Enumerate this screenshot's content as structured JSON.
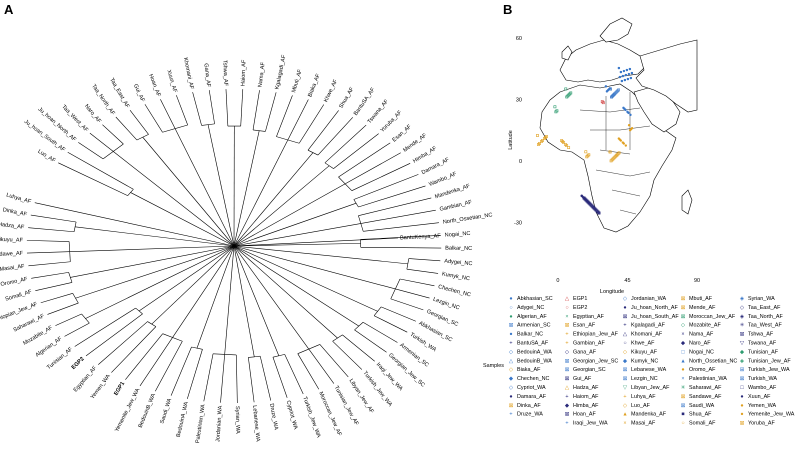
{
  "panel_a": {
    "letter": "A",
    "root_label": "BantuKenya_AF",
    "leaves": [
      "Luo_AF",
      "Ju_hoan_South_AF",
      "Ju_hoan_North_AF",
      "Taa_West_AF",
      "Naro_AF",
      "Taa_North_AF",
      "Taa_East_AF",
      "Gui_AF",
      "Hoan_AF",
      "Xuun_AF",
      "Khomani_AF",
      "Gana_AF",
      "Tshwa_AF",
      "Haiom_AF",
      "Nama_AF",
      "Kgalagadi_AF",
      "Mbuti_AF",
      "Biaka_AF",
      "Khwe_AF",
      "Shua_AF",
      "BantuSA_AF",
      "Tswana_AF",
      "Yoruba_AF",
      "Esan_AF",
      "Mende_AF",
      "Himba_AF",
      "Damara_AF",
      "Wambo_AF",
      "Mandenka_AF",
      "Gambian_AF",
      "North_Ossetian_NC",
      "Nogai_NC",
      "Balkar_NC",
      "Adygei_NC",
      "Kumyk_NC",
      "Chechen_NC",
      "Lezgin_NC",
      "Georgian_SC",
      "Abkhasian_SC",
      "Turkish_WA",
      "Armenian_SC",
      "Georgian_Jew_SC",
      "Iraqi_Jew_WA",
      "Turkish_Jew_WA",
      "Libyan_Jew_AF",
      "Tunisian_Jew_AF",
      "Moroccan_Jew_AF",
      "Turkish_Jew_WA",
      "Cypriot_WA",
      "Druze_WA",
      "Lebanese_WA",
      "Syrian_WA",
      "Jordanian_WA",
      "Palestinian_WA",
      "BedouinA_WA",
      "Saudi_WA",
      "BedouinB_WA",
      "Yemenite_Jew_WA",
      "EGP1",
      "Yemen_WA",
      "Egyptian_AF",
      "EGP2",
      "Tunisian_AF",
      "Algerian_AF",
      "Mozabite_AF",
      "Saharawi_AF",
      "Ethiopian_Jew_AF",
      "Somali_AF",
      "Oromo_AF",
      "Masai_AF",
      "Sandawe_AF",
      "Kikuyu_AF",
      "Hadza_AF",
      "Dinka_AF",
      "Luhya_AF"
    ],
    "bold_leaves": [
      "EGP1",
      "EGP2"
    ]
  },
  "panel_b": {
    "letter": "B",
    "map": {
      "xlabel": "Longitude",
      "ylabel": "Latitude",
      "x_ticks": [
        "0",
        "45",
        "90"
      ],
      "y_ticks": [
        "60",
        "30",
        "0",
        "-30"
      ]
    },
    "legend": {
      "title": "Samples",
      "columns": [
        [
          {
            "label": "Abkhasian_SC",
            "color": "#3a78c9",
            "sym": "●"
          },
          {
            "label": "Adygei_NC",
            "color": "#3a78c9",
            "sym": "○"
          },
          {
            "label": "Algerian_AF",
            "color": "#2e9c70",
            "sym": "●"
          },
          {
            "label": "Armenian_SC",
            "color": "#3a78c9",
            "sym": "⊠"
          },
          {
            "label": "Balkar_NC",
            "color": "#3a78c9",
            "sym": "●"
          },
          {
            "label": "BantuSA_AF",
            "color": "#2a2a7a",
            "sym": "+"
          },
          {
            "label": "BedouinA_WA",
            "color": "#3a78c9",
            "sym": "◇"
          },
          {
            "label": "BedouinB_WA",
            "color": "#3a78c9",
            "sym": "△"
          },
          {
            "label": "Biaka_AF",
            "color": "#e0a020",
            "sym": "◇"
          },
          {
            "label": "Chechen_NC",
            "color": "#3a78c9",
            "sym": "◆"
          },
          {
            "label": "Cypriot_WA",
            "color": "#3a78c9",
            "sym": "◇"
          },
          {
            "label": "Damara_AF",
            "color": "#2a2a7a",
            "sym": "●"
          },
          {
            "label": "Dinka_AF",
            "color": "#e0a020",
            "sym": "⊠"
          },
          {
            "label": "Druze_WA",
            "color": "#3a78c9",
            "sym": "+"
          }
        ],
        [
          {
            "label": "EGP1",
            "color": "#d04040",
            "sym": "△"
          },
          {
            "label": "EGP2",
            "color": "#d04040",
            "sym": "○"
          },
          {
            "label": "Egyptian_AF",
            "color": "#2e9c70",
            "sym": "×"
          },
          {
            "label": "Esan_AF",
            "color": "#e0a020",
            "sym": "⊠"
          },
          {
            "label": "Ethiopian_Jew_AF",
            "color": "#e0a020",
            "sym": "+"
          },
          {
            "label": "Gambian_AF",
            "color": "#e0a020",
            "sym": "+"
          },
          {
            "label": "Gana_AF",
            "color": "#2a2a7a",
            "sym": "◇"
          },
          {
            "label": "Georgian_Jew_SC",
            "color": "#3a78c9",
            "sym": "⊠"
          },
          {
            "label": "Georgian_SC",
            "color": "#3a78c9",
            "sym": "⊠"
          },
          {
            "label": "Gui_AF",
            "color": "#2a2a7a",
            "sym": "⊠"
          },
          {
            "label": "Hadza_AF",
            "color": "#e0a020",
            "sym": "△"
          },
          {
            "label": "Haiom_AF",
            "color": "#2a2a7a",
            "sym": "+"
          },
          {
            "label": "Himba_AF",
            "color": "#2a2a7a",
            "sym": "◆"
          },
          {
            "label": "Hoan_AF",
            "color": "#2a2a7a",
            "sym": "⊠"
          },
          {
            "label": "Iraqi_Jew_WA",
            "color": "#3a78c9",
            "sym": "+"
          }
        ],
        [
          {
            "label": "Jordanian_WA",
            "color": "#3a78c9",
            "sym": "◇"
          },
          {
            "label": "Ju_hoan_North_AF",
            "color": "#2a2a7a",
            "sym": "●"
          },
          {
            "label": "Ju_hoan_South_AF",
            "color": "#2a2a7a",
            "sym": "⊠"
          },
          {
            "label": "Kgalagadi_AF",
            "color": "#2a2a7a",
            "sym": "+"
          },
          {
            "label": "Khomani_AF",
            "color": "#2a2a7a",
            "sym": "△"
          },
          {
            "label": "Khwe_AF",
            "color": "#2a2a7a",
            "sym": "○"
          },
          {
            "label": "Kikuyu_AF",
            "color": "#e0a020",
            "sym": "◇"
          },
          {
            "label": "Kumyk_NC",
            "color": "#3a78c9",
            "sym": "◆"
          },
          {
            "label": "Lebanese_WA",
            "color": "#3a78c9",
            "sym": "⊠"
          },
          {
            "label": "Lezgin_NC",
            "color": "#3a78c9",
            "sym": "⊠"
          },
          {
            "label": "Libyan_Jew_AF",
            "color": "#2e9c70",
            "sym": "▽"
          },
          {
            "label": "Luhya_AF",
            "color": "#e0a020",
            "sym": "+"
          },
          {
            "label": "Luo_AF",
            "color": "#e0a020",
            "sym": "◇"
          },
          {
            "label": "Mandenka_AF",
            "color": "#e0a020",
            "sym": "▲"
          },
          {
            "label": "Masai_AF",
            "color": "#e0a020",
            "sym": "×"
          }
        ],
        [
          {
            "label": "Mbuti_AF",
            "color": "#e0a020",
            "sym": "⊠"
          },
          {
            "label": "Mende_AF",
            "color": "#e0a020",
            "sym": "⊠"
          },
          {
            "label": "Moroccan_Jew_AF",
            "color": "#2e9c70",
            "sym": "⊠"
          },
          {
            "label": "Mozabite_AF",
            "color": "#2e9c70",
            "sym": "◇"
          },
          {
            "label": "Nama_AF",
            "color": "#2a2a7a",
            "sym": "×"
          },
          {
            "label": "Naro_AF",
            "color": "#2a2a7a",
            "sym": "◆"
          },
          {
            "label": "Nogai_NC",
            "color": "#3a78c9",
            "sym": "□"
          },
          {
            "label": "North_Ossetian_NC",
            "color": "#3a78c9",
            "sym": "▲"
          },
          {
            "label": "Oromo_AF",
            "color": "#e0a020",
            "sym": "●"
          },
          {
            "label": "Palestinian_WA",
            "color": "#3a78c9",
            "sym": "×"
          },
          {
            "label": "Saharawi_AF",
            "color": "#2e9c70",
            "sym": "✳"
          },
          {
            "label": "Sandawe_AF",
            "color": "#e0a020",
            "sym": "⊠"
          },
          {
            "label": "Saudi_WA",
            "color": "#3a78c9",
            "sym": "⊠"
          },
          {
            "label": "Shua_AF",
            "color": "#2a2a7a",
            "sym": "■"
          },
          {
            "label": "Somali_AF",
            "color": "#e0a020",
            "sym": "○"
          }
        ],
        [
          {
            "label": "Syrian_WA",
            "color": "#3a78c9",
            "sym": "◈"
          },
          {
            "label": "Taa_East_AF",
            "color": "#2a2a7a",
            "sym": "◇"
          },
          {
            "label": "Taa_North_AF",
            "color": "#2a2a7a",
            "sym": "◈"
          },
          {
            "label": "Taa_West_AF",
            "color": "#2a2a7a",
            "sym": "✳"
          },
          {
            "label": "Tshwa_AF",
            "color": "#2a2a7a",
            "sym": "⊠"
          },
          {
            "label": "Tswana_AF",
            "color": "#2a2a7a",
            "sym": "▽"
          },
          {
            "label": "Tunisian_AF",
            "color": "#2e9c70",
            "sym": "◆"
          },
          {
            "label": "Tunisian_Jew_AF",
            "color": "#2e9c70",
            "sym": "◈"
          },
          {
            "label": "Turkish_Jew_WA",
            "color": "#3a78c9",
            "sym": "⊞"
          },
          {
            "label": "Turkish_WA",
            "color": "#3a78c9",
            "sym": "⊠"
          },
          {
            "label": "Wambo_AF",
            "color": "#2a2a7a",
            "sym": "□"
          },
          {
            "label": "Xuun_AF",
            "color": "#2a2a7a",
            "sym": "●"
          },
          {
            "label": "Yemen_WA",
            "color": "#e0a020",
            "sym": "●"
          },
          {
            "label": "Yemenite_Jew_WA",
            "color": "#e0a020",
            "sym": "●"
          },
          {
            "label": "Yoruba_AF",
            "color": "#e0a020",
            "sym": "⊠"
          }
        ]
      ]
    },
    "colors": {
      "blue": "#3a78c9",
      "navy": "#2a2a7a",
      "orange": "#e0a020",
      "green": "#2e9c70",
      "red": "#d04040"
    }
  }
}
